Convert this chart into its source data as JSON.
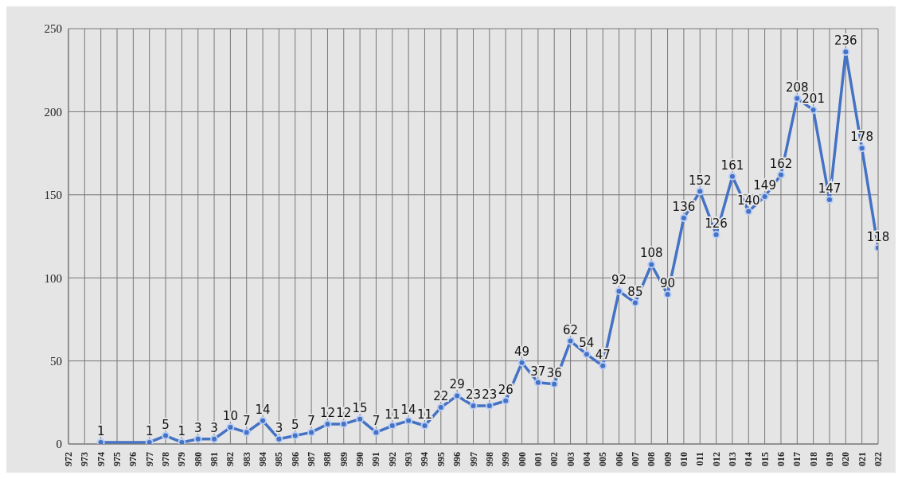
{
  "chart_data": {
    "type": "line",
    "categories": [
      "972",
      "973",
      "974",
      "975",
      "976",
      "977",
      "978",
      "979",
      "980",
      "981",
      "982",
      "983",
      "984",
      "985",
      "986",
      "987",
      "988",
      "989",
      "990",
      "991",
      "992",
      "993",
      "994",
      "995",
      "996",
      "997",
      "998",
      "999",
      "000",
      "001",
      "002",
      "003",
      "004",
      "005",
      "006",
      "007",
      "008",
      "009",
      "010",
      "011",
      "012",
      "013",
      "014",
      "015",
      "016",
      "017",
      "018",
      "019",
      "020",
      "021",
      "022"
    ],
    "series": [
      {
        "color": "#4472c4",
        "values": [
          null,
          null,
          1,
          null,
          null,
          1,
          5,
          1,
          3,
          3,
          10,
          7,
          14,
          3,
          5,
          7,
          12,
          12,
          15,
          7,
          11,
          14,
          11,
          22,
          29,
          23,
          23,
          26,
          49,
          37,
          36,
          62,
          54,
          47,
          92,
          85,
          108,
          90,
          136,
          152,
          126,
          161,
          140,
          149,
          162,
          208,
          201,
          147,
          236,
          178,
          118
        ]
      }
    ],
    "ylim": [
      0,
      250
    ],
    "yticks": [
      0,
      50,
      100,
      150,
      200,
      250
    ],
    "grid": true,
    "marker": "circle",
    "data_labels": true
  }
}
